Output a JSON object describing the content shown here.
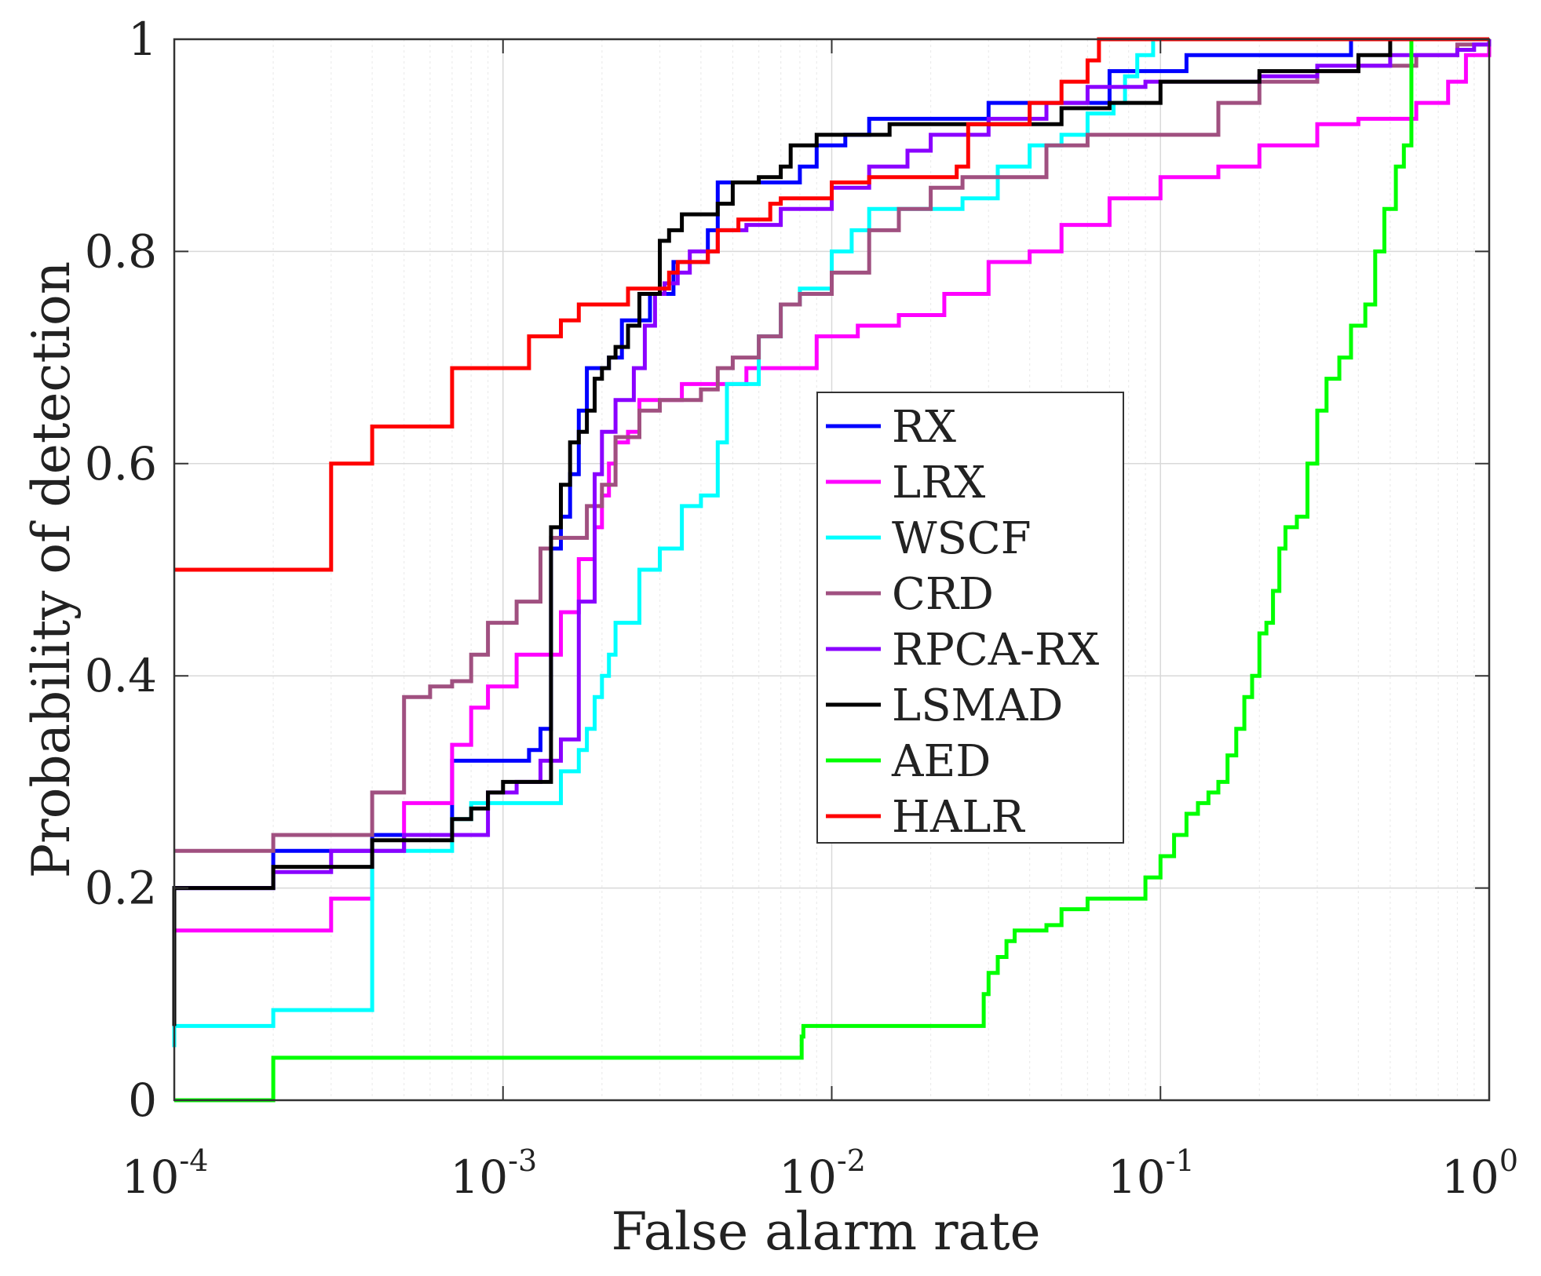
{
  "chart_data": {
    "type": "line",
    "title": "",
    "xlabel": "False alarm rate",
    "ylabel": "Probability of detection",
    "xscale": "log",
    "xlim": [
      0.0001,
      1
    ],
    "ylim": [
      0,
      1
    ],
    "x_ticks": [
      {
        "base": "10",
        "exp": "-4"
      },
      {
        "base": "10",
        "exp": "-3"
      },
      {
        "base": "10",
        "exp": "-2"
      },
      {
        "base": "10",
        "exp": "-1"
      },
      {
        "base": "10",
        "exp": "0"
      }
    ],
    "y_ticks": [
      "0",
      "0.2",
      "0.4",
      "0.6",
      "0.8",
      "1"
    ],
    "grid": true,
    "legend_position": "center",
    "series": [
      {
        "name": "RX",
        "color": "#0000ff",
        "x": [
          0.0001,
          0.0001,
          0.0002,
          0.0002,
          0.0004,
          0.0004,
          0.0007,
          0.0007,
          0.001,
          0.0012,
          0.0013,
          0.0014,
          0.0014,
          0.0015,
          0.0016,
          0.0017,
          0.0018,
          0.0019,
          0.002,
          0.0021,
          0.0023,
          0.0025,
          0.0028,
          0.003,
          0.0033,
          0.0037,
          0.0042,
          0.0045,
          0.006,
          0.008,
          0.009,
          0.011,
          0.013,
          0.029,
          0.03,
          0.06,
          0.07,
          0.09,
          0.12,
          0.3,
          0.38,
          1
        ],
        "y": [
          0.07,
          0.2,
          0.2,
          0.235,
          0.235,
          0.25,
          0.25,
          0.32,
          0.32,
          0.33,
          0.35,
          0.35,
          0.52,
          0.55,
          0.59,
          0.65,
          0.69,
          0.69,
          0.69,
          0.7,
          0.735,
          0.735,
          0.76,
          0.76,
          0.79,
          0.79,
          0.82,
          0.865,
          0.865,
          0.88,
          0.9,
          0.91,
          0.925,
          0.925,
          0.94,
          0.94,
          0.97,
          0.97,
          0.985,
          0.985,
          1.0,
          1.0
        ]
      },
      {
        "name": "LRX",
        "color": "#ff00ff",
        "x": [
          0.0001,
          0.0003,
          0.0003,
          0.0004,
          0.0004,
          0.0005,
          0.0005,
          0.0007,
          0.0007,
          0.0008,
          0.0009,
          0.0011,
          0.0012,
          0.0015,
          0.0017,
          0.0019,
          0.002,
          0.0021,
          0.0022,
          0.0024,
          0.0026,
          0.003,
          0.0035,
          0.0045,
          0.0055,
          0.007,
          0.009,
          0.012,
          0.016,
          0.022,
          0.03,
          0.04,
          0.05,
          0.07,
          0.1,
          0.15,
          0.2,
          0.3,
          0.4,
          0.6,
          0.75,
          0.85,
          1
        ],
        "y": [
          0.16,
          0.16,
          0.19,
          0.19,
          0.235,
          0.235,
          0.28,
          0.28,
          0.335,
          0.37,
          0.39,
          0.42,
          0.42,
          0.46,
          0.51,
          0.54,
          0.57,
          0.6,
          0.62,
          0.63,
          0.66,
          0.66,
          0.675,
          0.675,
          0.69,
          0.69,
          0.72,
          0.73,
          0.74,
          0.76,
          0.79,
          0.8,
          0.825,
          0.85,
          0.87,
          0.88,
          0.9,
          0.92,
          0.925,
          0.94,
          0.96,
          0.985,
          1.0
        ]
      },
      {
        "name": "WSCF",
        "color": "#00ffff",
        "x": [
          0.0001,
          0.0001,
          0.0002,
          0.0002,
          0.0004,
          0.0004,
          0.0007,
          0.0007,
          0.0008,
          0.0015,
          0.0017,
          0.0018,
          0.0019,
          0.002,
          0.0021,
          0.0022,
          0.0024,
          0.0026,
          0.003,
          0.0035,
          0.004,
          0.0045,
          0.0048,
          0.0052,
          0.006,
          0.007,
          0.008,
          0.01,
          0.0115,
          0.013,
          0.02,
          0.025,
          0.032,
          0.04,
          0.05,
          0.06,
          0.072,
          0.078,
          0.085,
          0.095,
          1
        ],
        "y": [
          0.05,
          0.07,
          0.07,
          0.085,
          0.085,
          0.235,
          0.235,
          0.265,
          0.28,
          0.31,
          0.33,
          0.35,
          0.38,
          0.4,
          0.42,
          0.45,
          0.45,
          0.5,
          0.52,
          0.56,
          0.57,
          0.62,
          0.675,
          0.675,
          0.72,
          0.75,
          0.765,
          0.8,
          0.82,
          0.84,
          0.84,
          0.85,
          0.88,
          0.9,
          0.91,
          0.93,
          0.94,
          0.965,
          0.985,
          1.0,
          1.0
        ]
      },
      {
        "name": "CRD",
        "color": "#a05080",
        "x": [
          0.0001,
          0.0002,
          0.0002,
          0.0004,
          0.0004,
          0.0005,
          0.0005,
          0.0006,
          0.0007,
          0.0008,
          0.0009,
          0.001,
          0.0011,
          0.0012,
          0.0013,
          0.0014,
          0.0016,
          0.0018,
          0.002,
          0.0022,
          0.0026,
          0.003,
          0.004,
          0.0045,
          0.005,
          0.006,
          0.007,
          0.008,
          0.01,
          0.013,
          0.016,
          0.02,
          0.025,
          0.03,
          0.045,
          0.06,
          0.08,
          0.1,
          0.15,
          0.2,
          0.3,
          0.4,
          0.6,
          0.8,
          1
        ],
        "y": [
          0.235,
          0.235,
          0.25,
          0.25,
          0.29,
          0.29,
          0.38,
          0.39,
          0.395,
          0.42,
          0.45,
          0.45,
          0.47,
          0.47,
          0.52,
          0.53,
          0.53,
          0.56,
          0.58,
          0.625,
          0.65,
          0.66,
          0.67,
          0.69,
          0.7,
          0.72,
          0.75,
          0.76,
          0.78,
          0.82,
          0.84,
          0.86,
          0.87,
          0.87,
          0.9,
          0.91,
          0.91,
          0.91,
          0.94,
          0.96,
          0.97,
          0.975,
          0.985,
          0.995,
          1.0
        ]
      },
      {
        "name": "RPCA-RX",
        "color": "#8a00ff",
        "x": [
          0.0001,
          0.0002,
          0.0002,
          0.0003,
          0.0003,
          0.0005,
          0.0005,
          0.0008,
          0.0009,
          0.0011,
          0.0013,
          0.0015,
          0.0017,
          0.0019,
          0.002,
          0.0022,
          0.0025,
          0.0027,
          0.0029,
          0.0031,
          0.0034,
          0.0037,
          0.0045,
          0.0055,
          0.007,
          0.01,
          0.013,
          0.017,
          0.02,
          0.03,
          0.045,
          0.06,
          0.09,
          0.12,
          0.2,
          0.3,
          0.5,
          0.8,
          0.9,
          1
        ],
        "y": [
          0.2,
          0.2,
          0.215,
          0.215,
          0.235,
          0.235,
          0.25,
          0.25,
          0.29,
          0.3,
          0.32,
          0.34,
          0.47,
          0.59,
          0.63,
          0.66,
          0.69,
          0.73,
          0.76,
          0.77,
          0.78,
          0.8,
          0.82,
          0.825,
          0.84,
          0.86,
          0.88,
          0.895,
          0.91,
          0.925,
          0.94,
          0.955,
          0.96,
          0.96,
          0.965,
          0.975,
          0.985,
          0.99,
          0.995,
          1.0
        ]
      },
      {
        "name": "LSMAD",
        "color": "#000000",
        "x": [
          0.0001,
          0.0001,
          0.0002,
          0.0002,
          0.0004,
          0.0004,
          0.0007,
          0.0008,
          0.0009,
          0.001,
          0.0012,
          0.0014,
          0.0015,
          0.0016,
          0.0017,
          0.0018,
          0.0019,
          0.002,
          0.0021,
          0.0022,
          0.0024,
          0.0026,
          0.0028,
          0.003,
          0.0032,
          0.0035,
          0.0045,
          0.005,
          0.006,
          0.007,
          0.0075,
          0.009,
          0.012,
          0.015,
          0.02,
          0.025,
          0.04,
          0.05,
          0.07,
          0.1,
          0.2,
          0.4,
          0.5,
          1
        ],
        "y": [
          0.07,
          0.2,
          0.2,
          0.22,
          0.22,
          0.245,
          0.265,
          0.275,
          0.29,
          0.3,
          0.3,
          0.54,
          0.58,
          0.62,
          0.63,
          0.65,
          0.68,
          0.69,
          0.7,
          0.71,
          0.73,
          0.76,
          0.76,
          0.81,
          0.82,
          0.835,
          0.845,
          0.865,
          0.87,
          0.88,
          0.9,
          0.91,
          0.91,
          0.92,
          0.92,
          0.92,
          0.92,
          0.935,
          0.94,
          0.96,
          0.97,
          0.985,
          1.0,
          1.0
        ]
      },
      {
        "name": "AED",
        "color": "#00ff00",
        "x": [
          0.0001,
          0.0002,
          0.0002,
          0.0079,
          0.0081,
          0.0082,
          0.028,
          0.029,
          0.03,
          0.032,
          0.034,
          0.036,
          0.04,
          0.045,
          0.05,
          0.06,
          0.07,
          0.09,
          0.1,
          0.11,
          0.12,
          0.13,
          0.14,
          0.15,
          0.16,
          0.17,
          0.18,
          0.19,
          0.2,
          0.21,
          0.22,
          0.23,
          0.24,
          0.26,
          0.28,
          0.3,
          0.32,
          0.35,
          0.38,
          0.42,
          0.45,
          0.48,
          0.52,
          0.55,
          0.58,
          1
        ],
        "y": [
          0.0,
          0.0,
          0.04,
          0.04,
          0.06,
          0.07,
          0.07,
          0.1,
          0.12,
          0.135,
          0.15,
          0.16,
          0.16,
          0.165,
          0.18,
          0.19,
          0.19,
          0.21,
          0.23,
          0.25,
          0.27,
          0.28,
          0.29,
          0.3,
          0.325,
          0.35,
          0.38,
          0.4,
          0.44,
          0.45,
          0.48,
          0.52,
          0.54,
          0.55,
          0.6,
          0.65,
          0.68,
          0.7,
          0.73,
          0.75,
          0.8,
          0.84,
          0.88,
          0.9,
          1.0,
          1.0
        ]
      },
      {
        "name": "HALR",
        "color": "#ff0000",
        "x": [
          0.0001,
          0.0003,
          0.0003,
          0.0004,
          0.0004,
          0.0007,
          0.0007,
          0.0012,
          0.0012,
          0.0014,
          0.0015,
          0.0016,
          0.0017,
          0.0024,
          0.0024,
          0.003,
          0.0032,
          0.0034,
          0.0036,
          0.0042,
          0.0045,
          0.0052,
          0.0065,
          0.007,
          0.01,
          0.013,
          0.017,
          0.024,
          0.026,
          0.03,
          0.04,
          0.05,
          0.06,
          0.065,
          1
        ],
        "y": [
          0.5,
          0.5,
          0.6,
          0.6,
          0.635,
          0.635,
          0.69,
          0.69,
          0.72,
          0.72,
          0.735,
          0.735,
          0.75,
          0.75,
          0.765,
          0.765,
          0.78,
          0.79,
          0.79,
          0.8,
          0.82,
          0.83,
          0.845,
          0.85,
          0.865,
          0.87,
          0.87,
          0.88,
          0.92,
          0.92,
          0.94,
          0.96,
          0.98,
          1.0,
          1.0
        ]
      }
    ]
  }
}
